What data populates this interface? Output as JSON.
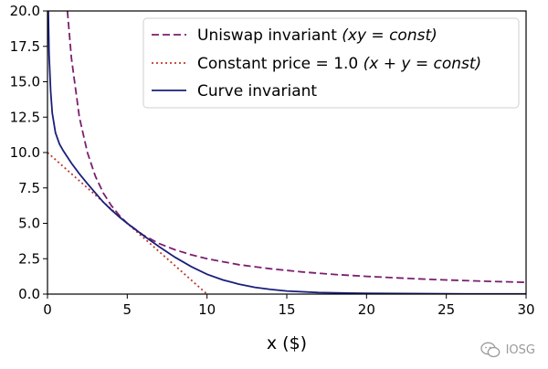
{
  "chart_data": {
    "type": "line",
    "xlabel": "x ($)",
    "ylabel": "",
    "xlim": [
      0,
      30
    ],
    "ylim": [
      0,
      20
    ],
    "x_ticks": [
      "0",
      "5",
      "10",
      "15",
      "20",
      "25",
      "30"
    ],
    "y_ticks": [
      "0.0",
      "2.5",
      "5.0",
      "7.5",
      "10.0",
      "12.5",
      "15.0",
      "17.5",
      "20.0"
    ],
    "grid": false,
    "legend_position": "top-right",
    "series": [
      {
        "name": "Uniswap invariant",
        "name_math": "(xy = const)",
        "color": "#7b1f6e",
        "style": "dashed",
        "x": [
          1.25,
          1.5,
          2,
          2.5,
          3,
          3.5,
          4,
          4.5,
          5,
          6,
          7,
          8,
          9,
          10,
          12,
          14,
          16,
          18,
          20,
          22,
          24,
          26,
          28,
          30
        ],
        "y": [
          20.0,
          16.67,
          12.5,
          10.0,
          8.33,
          7.14,
          6.25,
          5.56,
          5.0,
          4.17,
          3.57,
          3.13,
          2.78,
          2.5,
          2.08,
          1.79,
          1.56,
          1.39,
          1.25,
          1.14,
          1.04,
          0.96,
          0.89,
          0.83
        ]
      },
      {
        "name": "Constant price = 1.0",
        "name_math": "(x + y = const)",
        "color": "#c0392b",
        "style": "dotted",
        "x": [
          0,
          10
        ],
        "y": [
          10,
          0
        ]
      },
      {
        "name": "Curve invariant",
        "color": "#1a1f7a",
        "style": "solid",
        "x": [
          0.05,
          0.1,
          0.2,
          0.3,
          0.5,
          0.75,
          1.0,
          1.5,
          2.0,
          2.5,
          3.0,
          3.5,
          4.0,
          4.5,
          5.0,
          6.0,
          7.0,
          8.0,
          9.0,
          10.0,
          11.0,
          12.0,
          13.0,
          14.0,
          15.0,
          17.0,
          20.0,
          25.0,
          30.0
        ],
        "y": [
          20.0,
          17.0,
          14.3,
          12.8,
          11.4,
          10.6,
          10.1,
          9.25,
          8.5,
          7.8,
          7.15,
          6.5,
          5.95,
          5.45,
          5.0,
          4.15,
          3.35,
          2.6,
          1.95,
          1.4,
          1.0,
          0.7,
          0.48,
          0.33,
          0.22,
          0.11,
          0.05,
          0.02,
          0.01
        ]
      }
    ]
  },
  "watermark": {
    "text": "IOSG",
    "icon": "wechat-icon"
  }
}
